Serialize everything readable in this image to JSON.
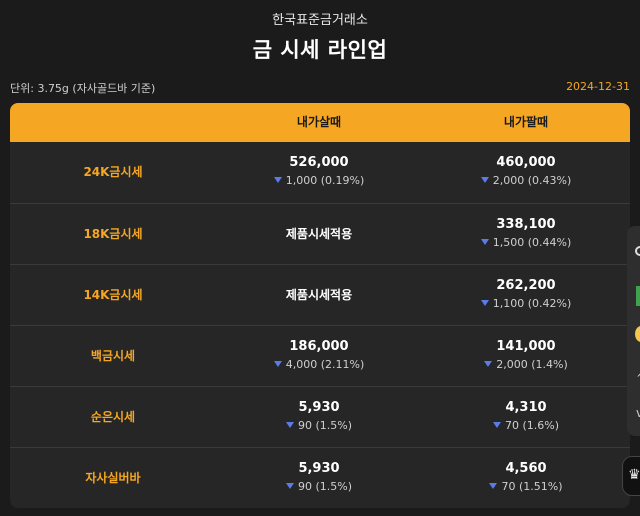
{
  "header": {
    "subtitle": "한국표준금거래소",
    "title": "금 시세 라인업"
  },
  "meta": {
    "unit_text": "단위: 3.75g (자사골드바 기준)",
    "date": "2024-12-31"
  },
  "table": {
    "columns": [
      "",
      "내가살때",
      "내가팔때"
    ],
    "rows": [
      {
        "label": "24K금시세",
        "buy": {
          "price": "526,000",
          "change": "1,000 (0.19%)",
          "applied": null
        },
        "sell": {
          "price": "460,000",
          "change": "2,000 (0.43%)"
        }
      },
      {
        "label": "18K금시세",
        "buy": {
          "price": null,
          "change": null,
          "applied": "제품시세적용"
        },
        "sell": {
          "price": "338,100",
          "change": "1,500 (0.44%)"
        }
      },
      {
        "label": "14K금시세",
        "buy": {
          "price": null,
          "change": null,
          "applied": "제품시세적용"
        },
        "sell": {
          "price": "262,200",
          "change": "1,100 (0.42%)"
        }
      },
      {
        "label": "백금시세",
        "buy": {
          "price": "186,000",
          "change": "4,000 (2.11%)",
          "applied": null
        },
        "sell": {
          "price": "141,000",
          "change": "2,000 (1.4%)"
        }
      },
      {
        "label": "순은시세",
        "buy": {
          "price": "5,930",
          "change": "90 (1.5%)",
          "applied": null
        },
        "sell": {
          "price": "4,310",
          "change": "70 (1.6%)"
        }
      },
      {
        "label": "자사실버바",
        "buy": {
          "price": "5,930",
          "change": "90 (1.5%)",
          "applied": null
        },
        "sell": {
          "price": "4,560",
          "change": "70 (1.51%)"
        }
      }
    ]
  },
  "colors": {
    "accent": "#f5a623",
    "background": "#1b1b1b",
    "table_bg": "#262626",
    "down_arrow": "#5b7be8"
  },
  "icons": {
    "change_direction": "down-triangle-icon",
    "fab": "crown-icon"
  }
}
